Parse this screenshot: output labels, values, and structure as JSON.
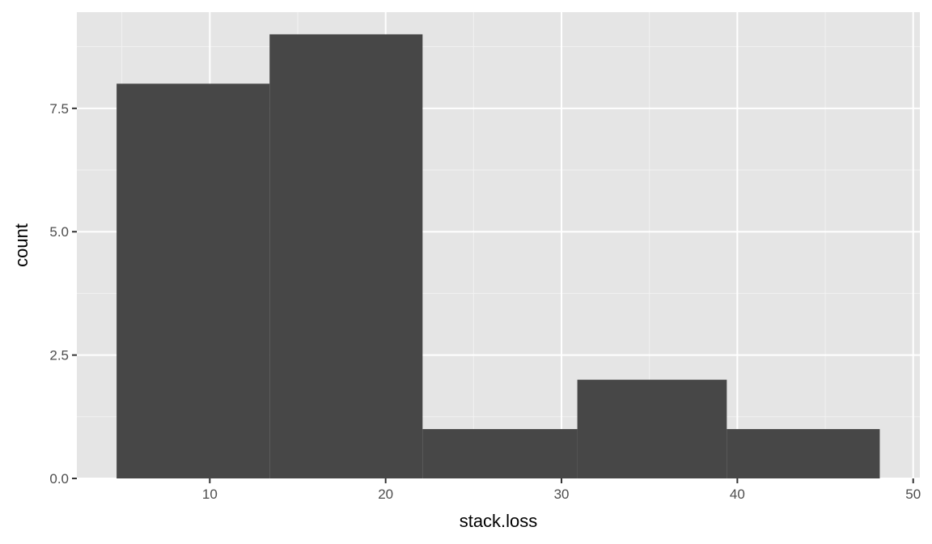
{
  "chart_data": {
    "type": "bar",
    "subtype": "histogram",
    "title": "",
    "xlabel": "stack.loss",
    "ylabel": "count",
    "xlim": [
      2.44,
      50.38
    ],
    "ylim": [
      0,
      9.45
    ],
    "x_ticks": [
      10,
      20,
      30,
      40,
      50
    ],
    "x_tick_labels": [
      "10",
      "20",
      "30",
      "40",
      "50"
    ],
    "y_ticks": [
      0,
      2.5,
      5,
      7.5
    ],
    "y_tick_labels": [
      "0.0",
      "2.5",
      "5.0",
      "7.5"
    ],
    "grid": true,
    "bins": [
      {
        "x_start": 4.7,
        "x_end": 13.4,
        "count": 8
      },
      {
        "x_start": 13.4,
        "x_end": 22.1,
        "count": 9
      },
      {
        "x_start": 22.1,
        "x_end": 30.9,
        "count": 1
      },
      {
        "x_start": 30.9,
        "x_end": 39.4,
        "count": 2
      },
      {
        "x_start": 39.4,
        "x_end": 48.1,
        "count": 1
      }
    ],
    "colors": {
      "panel_background": "#e5e5e5",
      "grid_major": "#ffffff",
      "grid_minor": "#f2f2f2",
      "bar_fill": "#474747",
      "tick_mark": "#333333"
    }
  }
}
